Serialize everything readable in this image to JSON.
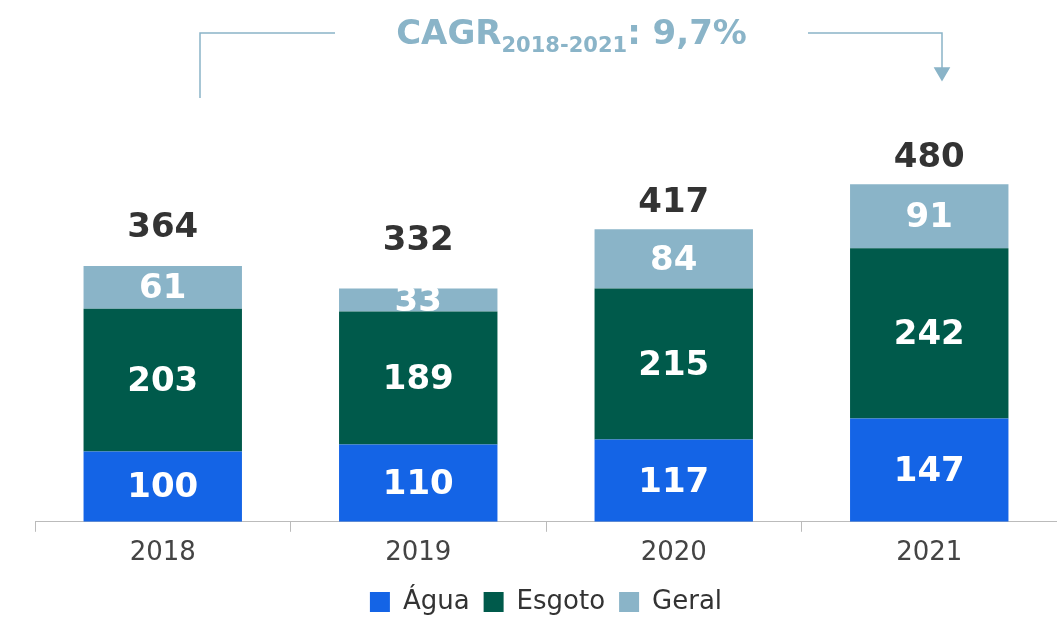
{
  "chart_data": {
    "type": "bar",
    "stacked": true,
    "categories": [
      "2018",
      "2019",
      "2020",
      "2021"
    ],
    "series": [
      {
        "name": "Água",
        "color": "#1464e6",
        "values": [
          100,
          110,
          117,
          147
        ]
      },
      {
        "name": "Esgoto",
        "color": "#005a4b",
        "values": [
          203,
          189,
          215,
          242
        ]
      },
      {
        "name": "Geral",
        "color": "#8ab4c8",
        "values": [
          61,
          33,
          84,
          91
        ]
      }
    ],
    "data_labels": true,
    "totals": [
      "364",
      "332",
      "417",
      "480"
    ],
    "legend": "bottom",
    "grid": false,
    "annotations": [
      "CAGR$_{2018-2021}$: 9,7%"
    ]
  }
}
